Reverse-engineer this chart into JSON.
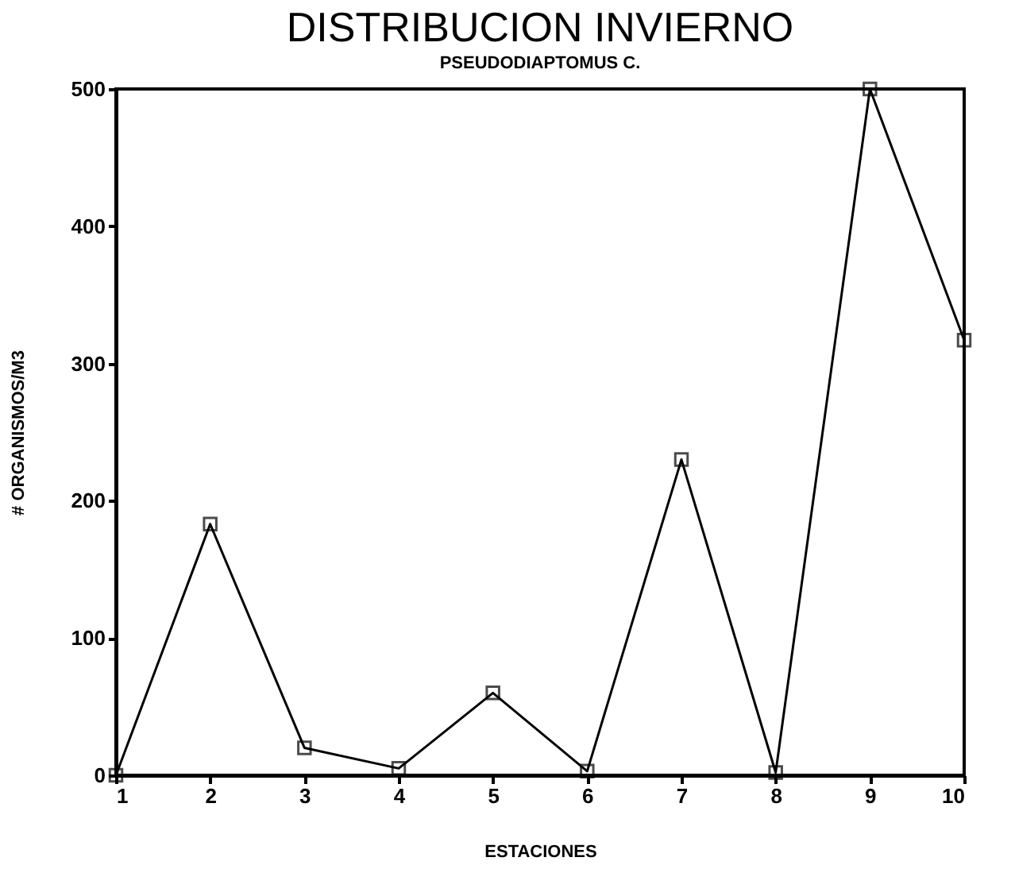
{
  "chart_data": {
    "type": "line",
    "title": "DISTRIBUCION INVIERNO",
    "subtitle": "PSEUDODIAPTOMUS C.",
    "xlabel": "ESTACIONES",
    "ylabel": "# ORGANISMOS/M3",
    "x": [
      1,
      2,
      3,
      4,
      5,
      6,
      7,
      8,
      9,
      10
    ],
    "series": [
      {
        "color": "#000000",
        "values": [
          0,
          183,
          20,
          5,
          60,
          3,
          230,
          2,
          500,
          317
        ]
      }
    ],
    "xlim": [
      1,
      10
    ],
    "xticks": [
      1,
      2,
      3,
      4,
      5,
      6,
      7,
      8,
      9,
      10
    ],
    "ylim": [
      0,
      500
    ],
    "yticks": [
      0,
      100,
      200,
      300,
      400,
      500
    ],
    "grid": false,
    "marker": "square",
    "line_style": "solid"
  }
}
